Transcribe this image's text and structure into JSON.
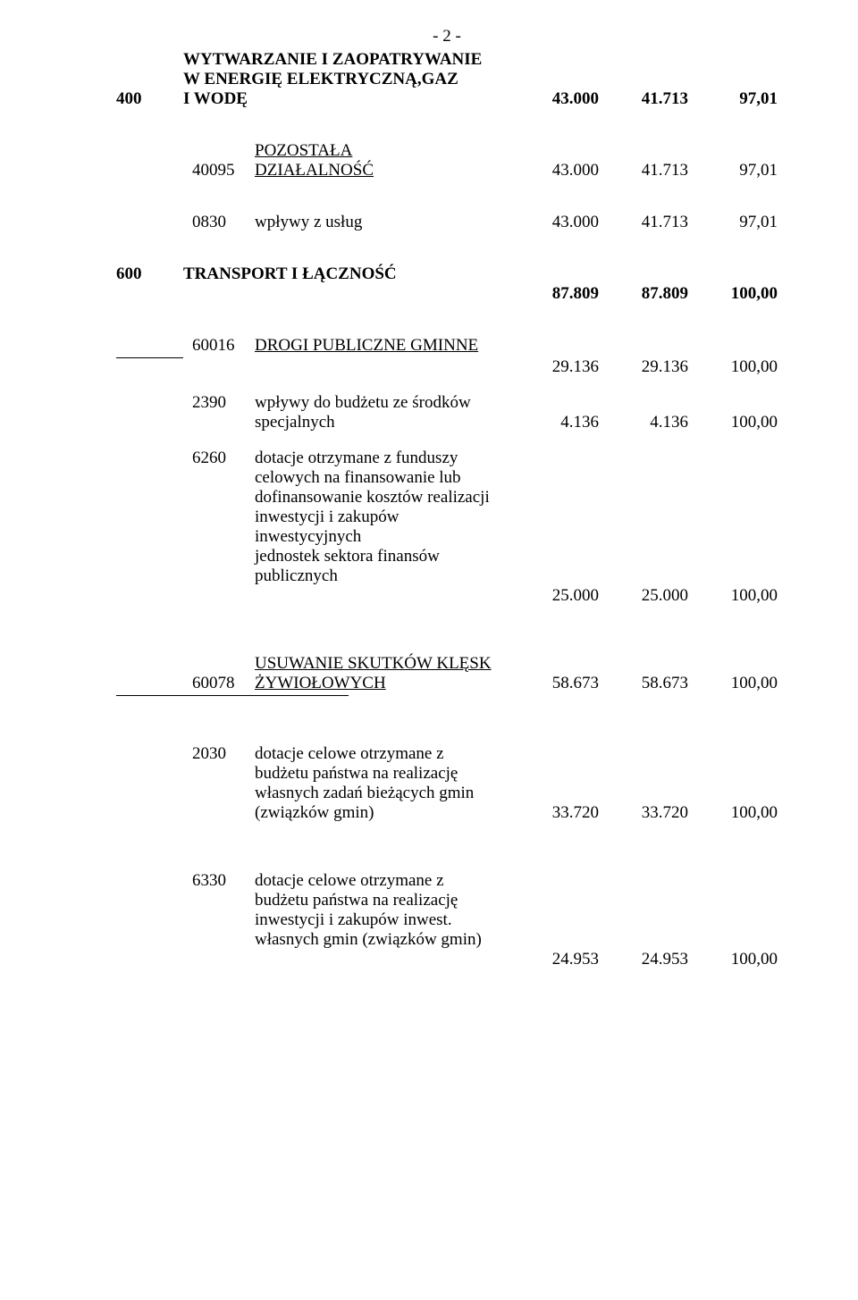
{
  "page_number": "- 2 -",
  "s400": {
    "code": "400",
    "title_l1": "WYTWARZANIE I ZAOPATRYWANIE",
    "title_l2": "W ENERGIĘ ELEKTRYCZNĄ,GAZ",
    "title_l3": "I WODĘ",
    "v1": "43.000",
    "v2": "41.713",
    "v3": "97,01",
    "sub40095": {
      "code": "40095",
      "title_l1": "POZOSTAŁA",
      "title_l2": "DZIAŁALNOŚĆ",
      "v1": "43.000",
      "v2": "41.713",
      "v3": "97,01"
    },
    "i0830": {
      "code": "0830",
      "label": "wpływy z usług",
      "v1": "43.000",
      "v2": "41.713",
      "v3": "97,01"
    }
  },
  "s600": {
    "code": "600",
    "title": "TRANSPORT I ŁĄCZNOŚĆ",
    "v1": "87.809",
    "v2": "87.809",
    "v3": "100,00",
    "sub60016": {
      "code": "60016",
      "title": "DROGI PUBLICZNE GMINNE",
      "v1": "29.136",
      "v2": "29.136",
      "v3": "100,00"
    },
    "i2390": {
      "code": "2390",
      "label_l1": "wpływy do budżetu ze środków",
      "label_l2": "specjalnych",
      "v1": "4.136",
      "v2": "4.136",
      "v3": "100,00"
    },
    "i6260": {
      "code": "6260",
      "label_l1": "dotacje otrzymane z funduszy",
      "label_l2": "celowych na finansowanie lub",
      "label_l3": "dofinansowanie kosztów realizacji",
      "label_l4": "inwestycji i zakupów inwestycyjnych",
      "label_l5": "jednostek sektora finansów publicznych",
      "v1": "25.000",
      "v2": "25.000",
      "v3": "100,00"
    },
    "sub60078": {
      "code": "60078",
      "title_l1": "USUWANIE SKUTKÓW KLĘSK",
      "title_l2": "ŻYWIOŁOWYCH",
      "v1": "58.673",
      "v2": "58.673",
      "v3": "100,00"
    },
    "i2030": {
      "code": "2030",
      "label_l1": "dotacje celowe otrzymane z",
      "label_l2": "budżetu państwa na realizację",
      "label_l3": "własnych zadań bieżących gmin",
      "label_l4": "(związków gmin)",
      "v1": "33.720",
      "v2": "33.720",
      "v3": "100,00"
    },
    "i6330": {
      "code": "6330",
      "label_l1": "dotacje celowe otrzymane z",
      "label_l2": "budżetu państwa na realizację",
      "label_l3": "inwestycji i zakupów inwest.",
      "label_l4": "własnych gmin (związków gmin)",
      "v1": "24.953",
      "v2": "24.953",
      "v3": "100,00"
    }
  }
}
